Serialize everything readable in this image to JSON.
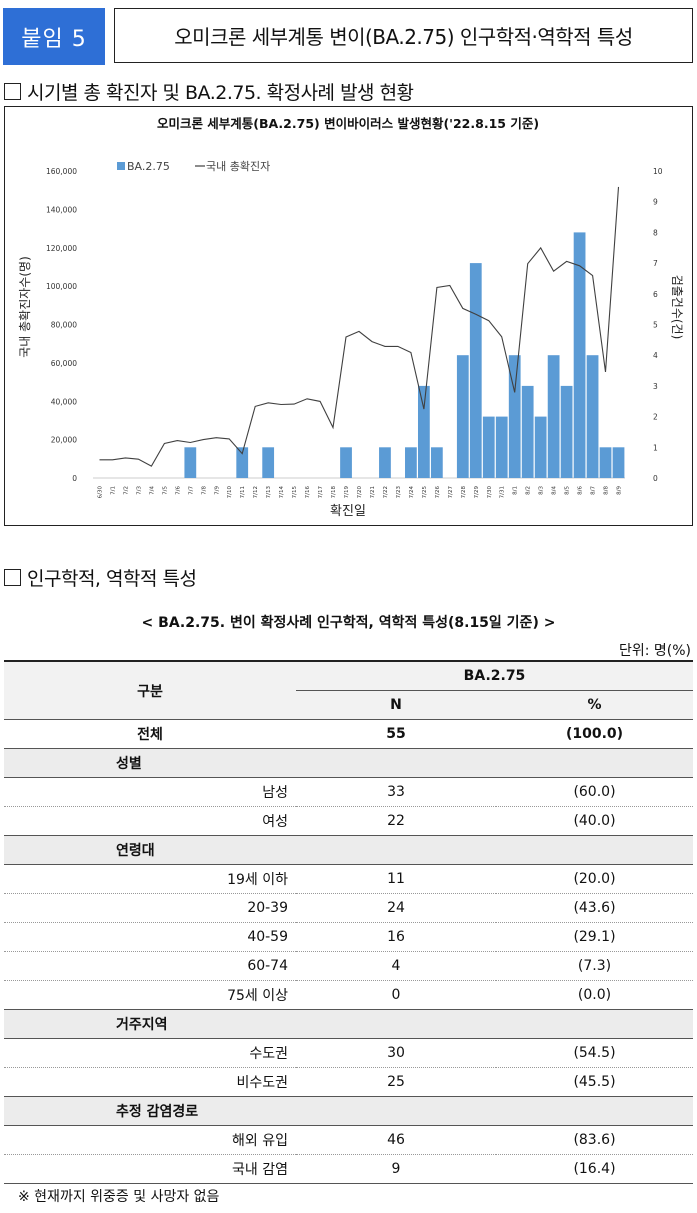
{
  "header": {
    "badge": "붙임 5",
    "title": "오미크론 세부계통 변이(BA.2.75) 인구학적·역학적 특성"
  },
  "section1": {
    "label": "시기별 총 확진자 및 BA.2.75. 확정사례 발생 현황"
  },
  "section2": {
    "label": "인구학적, 역학적 특성"
  },
  "colors": {
    "badge": "#2e6fd6",
    "bar": "#5b9bd5",
    "line": "#404040"
  },
  "chart_data": {
    "type": "bar+line",
    "title": "오미크론 세부계통(BA.2.75) 변이바이러스 발생현황('22.8.15 기준)",
    "xlabel": "확진일",
    "ylabel_left": "국내 총확진자수(명)",
    "ylabel_right": "검출건수(건)",
    "legend": [
      "BA.2.75",
      "국내 총확진자"
    ],
    "legend_position": "top-left",
    "ylim_left": [
      0,
      160000
    ],
    "ylim_right": [
      0,
      10
    ],
    "yticks_left": [
      "0",
      "20,000",
      "40,000",
      "60,000",
      "80,000",
      "100,000",
      "120,000",
      "140,000",
      "160,000"
    ],
    "yticks_right": [
      "0",
      "1",
      "2",
      "3",
      "4",
      "5",
      "6",
      "7",
      "8",
      "9",
      "10"
    ],
    "categories": [
      "6/30",
      "7/1",
      "7/2",
      "7/3",
      "7/4",
      "7/5",
      "7/6",
      "7/7",
      "7/8",
      "7/9",
      "7/10",
      "7/11",
      "7/12",
      "7/13",
      "7/14",
      "7/15",
      "7/16",
      "7/17",
      "7/18",
      "7/19",
      "7/20",
      "7/21",
      "7/22",
      "7/23",
      "7/24",
      "7/25",
      "7/26",
      "7/27",
      "7/28",
      "7/29",
      "7/30",
      "7/31",
      "8/1",
      "8/2",
      "8/3",
      "8/4",
      "8/5",
      "8/6",
      "8/7",
      "8/8",
      "8/9"
    ],
    "series": [
      {
        "name": "BA.2.75",
        "type": "bar",
        "axis": "right",
        "values": [
          0,
          0,
          0,
          0,
          0,
          0,
          0,
          1,
          0,
          0,
          0,
          1,
          0,
          1,
          0,
          0,
          0,
          0,
          0,
          1,
          0,
          0,
          1,
          0,
          1,
          3,
          1,
          0,
          4,
          7,
          2,
          2,
          4,
          3,
          2,
          4,
          3,
          8,
          4,
          1,
          1
        ]
      },
      {
        "name": "국내 총확진자",
        "type": "line",
        "axis": "left",
        "values": [
          9500,
          9500,
          10500,
          9800,
          6200,
          18000,
          19500,
          18500,
          20000,
          21000,
          20400,
          12700,
          37300,
          39200,
          38300,
          38500,
          41300,
          39900,
          26300,
          73500,
          76400,
          71100,
          68600,
          68600,
          65400,
          35900,
          99300,
          100300,
          88400,
          85300,
          82000,
          73600,
          44600,
          111700,
          119900,
          107800,
          112900,
          110600,
          105500,
          55300,
          151700
        ]
      }
    ]
  },
  "table": {
    "title": "< BA.2.75. 변이 확정사례 인구학적, 역학적 특성(8.15일 기준) >",
    "unit": "단위: 명(%)",
    "header": {
      "group": "구분",
      "variant": "BA.2.75",
      "n": "N",
      "pct": "%"
    },
    "total": {
      "label": "전체",
      "n": "55",
      "pct": "(100.0)"
    },
    "sections": [
      {
        "label": "성별",
        "rows": [
          {
            "label": "남성",
            "n": "33",
            "pct": "(60.0)"
          },
          {
            "label": "여성",
            "n": "22",
            "pct": "(40.0)"
          }
        ]
      },
      {
        "label": "연령대",
        "rows": [
          {
            "label": "19세 이하",
            "n": "11",
            "pct": "(20.0)"
          },
          {
            "label": "20-39",
            "n": "24",
            "pct": "(43.6)"
          },
          {
            "label": "40-59",
            "n": "16",
            "pct": "(29.1)"
          },
          {
            "label": "60-74",
            "n": "4",
            "pct": "(7.3)"
          },
          {
            "label": "75세 이상",
            "n": "0",
            "pct": "(0.0)"
          }
        ]
      },
      {
        "label": "거주지역",
        "rows": [
          {
            "label": "수도권",
            "n": "30",
            "pct": "(54.5)"
          },
          {
            "label": "비수도권",
            "n": "25",
            "pct": "(45.5)"
          }
        ]
      },
      {
        "label": "추정 감염경로",
        "rows": [
          {
            "label": "해외 유입",
            "n": "46",
            "pct": "(83.6)"
          },
          {
            "label": "국내 감염",
            "n": "9",
            "pct": "(16.4)"
          }
        ]
      }
    ]
  },
  "note": "※ 현재까지 위중증 및 사망자 없음"
}
